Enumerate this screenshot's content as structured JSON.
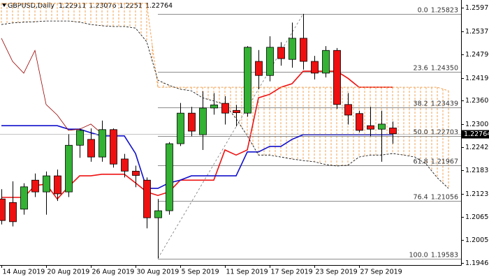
{
  "chart_data": {
    "type": "candlestick",
    "title": "GBPUSD,Daily",
    "categories": [
      "14 Aug 2019",
      null,
      null,
      null,
      "20 Aug 2019",
      null,
      null,
      null,
      "26 Aug 2019",
      null,
      null,
      null,
      "30 Aug 2019",
      null,
      null,
      null,
      "5 Sep 2019",
      null,
      null,
      null,
      "11 Sep 2019",
      null,
      null,
      null,
      "17 Sep 2019",
      null,
      null,
      null,
      "23 Sep 2019",
      null,
      null,
      null,
      "27 Sep 2019",
      null,
      null,
      null,
      null,
      null,
      null,
      null,
      null
    ],
    "candles": {
      "open": [
        1.211,
        1.2101,
        1.2084,
        1.2158,
        1.2128,
        1.2169,
        1.2128,
        1.2247,
        1.2262,
        1.2217,
        1.2287,
        1.2212,
        1.2181,
        1.2158,
        1.2062,
        1.208,
        1.2251,
        1.2329,
        1.2274,
        1.2342,
        1.2354,
        1.2336,
        1.2329,
        1.2461,
        1.2425,
        1.2497,
        1.2466,
        1.252,
        1.2461,
        1.2431,
        1.2489,
        1.2351,
        1.2328,
        1.2297,
        1.2288,
        1.22911,
        null,
        null,
        null,
        null,
        null
      ],
      "high": [
        1.2135,
        1.2155,
        1.215,
        1.2175,
        1.218,
        1.2185,
        1.2275,
        1.229,
        1.229,
        1.231,
        1.229,
        1.2225,
        1.2195,
        1.2165,
        1.211,
        1.2255,
        1.2355,
        1.2345,
        1.2385,
        1.238,
        1.2372,
        1.235,
        1.25,
        1.249,
        1.2525,
        1.251,
        1.256,
        1.25823,
        1.2475,
        1.25,
        1.2495,
        1.238,
        1.2335,
        1.2345,
        1.2335,
        1.23076,
        null,
        null,
        null,
        null,
        null
      ],
      "low": [
        1.2045,
        1.204,
        1.207,
        1.2115,
        1.207,
        1.2105,
        1.2115,
        1.2215,
        1.2205,
        1.2205,
        1.219,
        1.2165,
        1.214,
        1.2035,
        1.19583,
        1.207,
        1.2245,
        1.227,
        1.2235,
        1.2325,
        1.23,
        1.2295,
        1.232,
        1.239,
        1.241,
        1.245,
        1.2445,
        1.244,
        1.2415,
        1.242,
        1.234,
        1.23,
        1.228,
        1.227,
        1.2205,
        1.2251,
        null,
        null,
        null,
        null,
        null
      ],
      "close": [
        1.2055,
        1.2052,
        1.2141,
        1.2128,
        1.2169,
        1.2123,
        1.2247,
        1.2285,
        1.2217,
        1.2287,
        1.2199,
        1.2181,
        1.217,
        1.2062,
        1.208,
        1.2251,
        1.2329,
        1.2283,
        1.2342,
        1.235,
        1.2329,
        1.233,
        1.2497,
        1.2425,
        1.2497,
        1.2468,
        1.252,
        1.2461,
        1.2431,
        1.2489,
        1.2351,
        1.2324,
        1.2285,
        1.2288,
        1.2301,
        1.22764,
        null,
        null,
        null,
        null,
        null
      ],
      "up_color": "#33b233",
      "down_color": "#ee1111"
    },
    "lines": [
      {
        "color": "#ee1111",
        "width": 1.6,
        "dash": false,
        "values": [
          1.2114,
          1.2114,
          1.2114,
          1.2144,
          1.2148,
          1.211,
          1.2141,
          1.2169,
          1.2169,
          1.2173,
          1.2173,
          1.2173,
          1.2151,
          1.2128,
          1.2119,
          1.2128,
          1.2158,
          1.2158,
          1.2158,
          1.2158,
          1.2235,
          1.2222,
          1.2235,
          1.2368,
          1.2377,
          1.2395,
          1.2404,
          1.2436,
          1.2436,
          1.2436,
          1.2436,
          1.2418,
          1.2395,
          1.2395,
          1.2395,
          1.2395,
          null,
          null,
          null,
          null,
          null
        ]
      },
      {
        "color": "#1010cc",
        "width": 1.6,
        "dash": false,
        "values": [
          1.2297,
          1.2297,
          1.2297,
          1.2297,
          1.2297,
          1.2297,
          1.2288,
          1.2288,
          1.2279,
          1.2271,
          1.2271,
          1.2271,
          1.2226,
          1.2137,
          1.2137,
          1.2151,
          1.2158,
          1.2169,
          1.2169,
          1.2169,
          1.2169,
          1.2169,
          1.223,
          1.223,
          1.2244,
          1.2244,
          1.2262,
          1.2274,
          1.2274,
          1.2274,
          1.2274,
          1.2274,
          1.2274,
          1.2274,
          1.2274,
          1.2274,
          null,
          null,
          null,
          null,
          null
        ]
      },
      {
        "color": "#f0a050",
        "width": 1,
        "dash": true,
        "values": [
          1.2609,
          1.2609,
          1.2609,
          1.2609,
          1.2609,
          1.2609,
          1.2609,
          1.2609,
          1.2609,
          1.2609,
          1.2609,
          1.2609,
          1.2609,
          1.2609,
          1.2395,
          1.2395,
          1.2395,
          1.2395,
          1.2395,
          1.2395,
          1.2395,
          1.2395,
          1.2395,
          1.2395,
          1.2395,
          1.2395,
          1.2395,
          1.2395,
          1.2395,
          1.2395,
          1.2395,
          1.2395,
          1.2395,
          1.2395,
          1.2395,
          1.2395,
          1.2395,
          1.2395,
          1.2395,
          1.2395,
          1.2386
        ]
      },
      {
        "color": "#000000",
        "width": 0.8,
        "dash": true,
        "values": [
          1.2555,
          1.2559,
          1.2561,
          1.2562,
          1.2564,
          1.2564,
          1.2564,
          1.2561,
          1.2555,
          1.2552,
          1.255,
          1.255,
          1.2546,
          1.2511,
          1.2413,
          1.24,
          1.239,
          1.2386,
          1.2368,
          1.236,
          1.2351,
          1.2315,
          1.2271,
          1.2222,
          1.2222,
          1.2217,
          1.2212,
          1.2208,
          1.2205,
          1.2198,
          1.2194,
          1.2196,
          1.2217,
          1.2222,
          1.2222,
          1.2226,
          1.2222,
          1.2217,
          1.2199,
          1.2164,
          1.2137
        ]
      }
    ],
    "cloud_color": "#f0a050",
    "lagging_color": "#990000",
    "lagging_shift": 26,
    "fibonacci": [
      {
        "ratio": {
          "value": 0,
          "label": "0.0"
        },
        "price": 1.25823
      },
      {
        "ratio": 23.6,
        "price": {
          "value": 1.2435,
          "label": "1.24350"
        }
      },
      {
        "ratio": 38.2,
        "price": 1.23439
      },
      {
        "ratio": {
          "value": 50,
          "label": "50.0"
        },
        "price": 1.22703
      },
      {
        "ratio": 61.8,
        "price": 1.21967
      },
      {
        "ratio": 76.4,
        "price": 1.21056
      },
      {
        "ratio": {
          "value": 100,
          "label": "100.0"
        },
        "price": 1.19583
      }
    ],
    "ylim": [
      1.19414,
      1.26176
    ],
    "yticks": [
      1.25975,
      1.25375,
      {
        "value": 1.2479,
        "label": "1.24790"
      },
      {
        "value": 1.2419,
        "label": "1.24190"
      },
      1.23605,
      1.23005,
      {
        "value": 1.2242,
        "label": "1.22420"
      },
      1.21835,
      1.21235,
      {
        "value": 1.2065,
        "label": "1.20650"
      },
      {
        "value": 1.2005,
        "label": "1.20050"
      },
      1.19465
    ]
  }
}
